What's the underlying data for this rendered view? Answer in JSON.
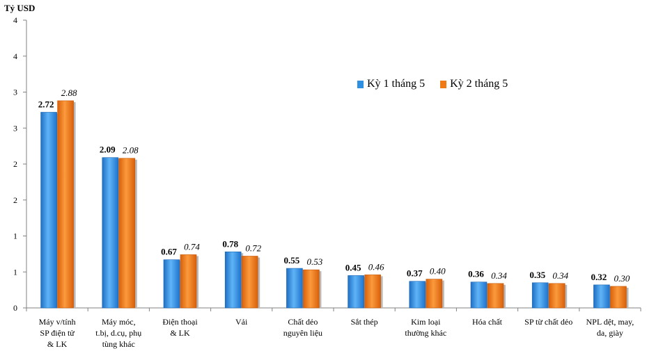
{
  "chart_data": {
    "type": "bar",
    "ylabel": "Tỷ USD",
    "ylim": [
      0,
      4
    ],
    "yticks": [
      {
        "value": 0,
        "label": "0"
      },
      {
        "value": 0.5,
        "label": "1"
      },
      {
        "value": 1.0,
        "label": "1"
      },
      {
        "value": 1.5,
        "label": "2"
      },
      {
        "value": 2.0,
        "label": "2"
      },
      {
        "value": 2.5,
        "label": "3"
      },
      {
        "value": 3.0,
        "label": "3"
      },
      {
        "value": 3.5,
        "label": "4"
      },
      {
        "value": 4.0,
        "label": "4"
      }
    ],
    "categories": [
      "Máy v/tính\nSP điện tử\n& LK",
      "Máy móc,\nt.bị, d.cụ, phụ\ntùng khác",
      "Điện thoại\n& LK",
      "Vải",
      "Chất dẻo\nnguyên liệu",
      "Sắt thép",
      "Kim loại\nthường khác",
      "Hóa chất",
      "SP từ chất dẻo",
      "NPL dệt, may,\nda, giày"
    ],
    "series": [
      {
        "name": "Kỳ 1 tháng 5",
        "color": "#2f8fe0",
        "values": [
          2.72,
          2.09,
          0.67,
          0.78,
          0.55,
          0.45,
          0.37,
          0.36,
          0.35,
          0.32
        ],
        "labels": [
          "2.72",
          "2.09",
          "0.67",
          "0.78",
          "0.55",
          "0.45",
          "0.37",
          "0.36",
          "0.35",
          "0.32"
        ]
      },
      {
        "name": "Kỳ 2 tháng 5",
        "color": "#f07a14",
        "values": [
          2.88,
          2.08,
          0.74,
          0.72,
          0.53,
          0.46,
          0.4,
          0.34,
          0.34,
          0.3
        ],
        "labels": [
          "2.88",
          "2.08",
          "0.74",
          "0.72",
          "0.53",
          "0.46",
          "0.40",
          "0.34",
          "0.34",
          "0.30"
        ]
      }
    ],
    "legend_position": "upper-right",
    "grid": false
  }
}
